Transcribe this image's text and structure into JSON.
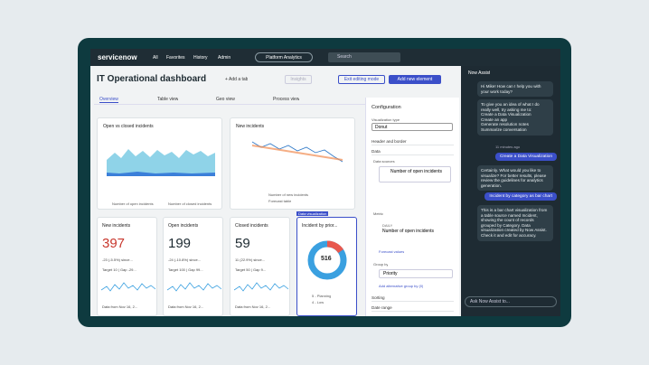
{
  "nav": {
    "logo": "servicenow",
    "links": [
      "All",
      "Favorites",
      "History",
      "Admin"
    ],
    "workspace": "Platform Analytics",
    "search": "Search"
  },
  "dashboard": {
    "title": "IT Operational dashboard",
    "add_tab": "+ Add a tab",
    "insights": "Insights",
    "exit": "Exit editing mode",
    "add_element": "Add new element",
    "tabs": [
      "Overview",
      "Table view",
      "Geo view",
      "Process view"
    ]
  },
  "widgets": {
    "open_closed": {
      "title": "Open vs closed incidents",
      "legend": [
        "Number of open incidents",
        "Number of closed incidents"
      ]
    },
    "new_incidents": {
      "title": "New incidents",
      "legend": [
        "Number of new incidents",
        "Forecast table"
      ]
    },
    "kpis": [
      {
        "title": "New incidents",
        "value": "397",
        "change": "-23 (-5.5%) since...",
        "target": "Target 10 | Gap -29...",
        "footer": "Data from Nov 16, 2..."
      },
      {
        "title": "Open incidents",
        "value": "199",
        "change": "-24 (-10.8%) since...",
        "target": "Target 100 | Gap 99...",
        "footer": "Data from Nov 16, 2..."
      },
      {
        "title": "Closed incidents",
        "value": "59",
        "change": "11 (22.9%) since...",
        "target": "Target 50 | Gap 9...",
        "footer": "Data from Nov 16, 2..."
      }
    ],
    "donut": {
      "tag": "Data visualization",
      "title": "Incident by prior...",
      "total": "516",
      "legend": [
        "5 - Planning",
        "4 - Low"
      ]
    }
  },
  "config": {
    "title": "Configuration",
    "viz_type_label": "Visualization type",
    "viz_type": "Donut",
    "header_border": "Header and border",
    "data": "Data",
    "data_sources": "Data sources",
    "source": "Number of open incidents",
    "metric": "Metric",
    "metric_freq": "DAILY",
    "metric_name": "Number of open incidents",
    "forecast": "Forecast values",
    "group_by": "Group by",
    "priority": "Priority",
    "add_group": "Add alternative group by (0)",
    "sorting": "Sorting",
    "date_range": "Date range"
  },
  "assist": {
    "title": "Now Assist",
    "greeting": "Hi Mike! How can I help you with your work today?",
    "intro": "To give you an idea of what I do really well, try asking me to:",
    "options": [
      "Create a Data Visualization",
      "Create an app",
      "Generate resolution notes",
      "Summarize conversation"
    ],
    "time": "11 minutes ago",
    "user1": "Create a Data Visualization",
    "reply1": "Certainly. What would you like to visualize? For better results, please review the guidelines for analytics generation.",
    "user2": "Incident by category as bar chart",
    "reply2": "This is a bar chart visualization from a table source named Incident, showing the count of records grouped by Category. Data visualization created by Now Assist. Check it and edit for accuracy.",
    "input": "Ask Now Assist to..."
  }
}
